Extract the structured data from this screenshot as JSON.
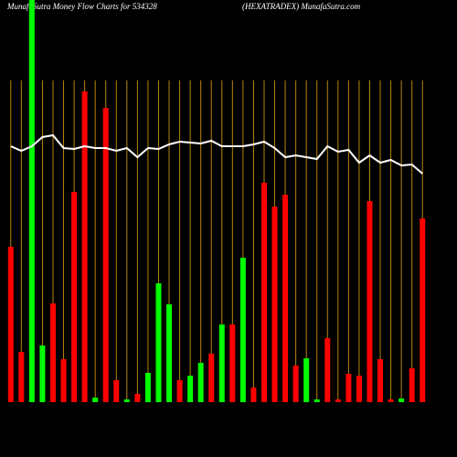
{
  "chart_data": {
    "type": "bar",
    "title": "MunafaSutra  Money Flow  Charts for 534328",
    "subtitle": "(HEXATRADEX) MunafaSutra.com",
    "ylim": [
      0,
      440
    ],
    "grid_color": "#b8860b",
    "bars": {
      "values": [
        170,
        55,
        440,
        62,
        108,
        47,
        230,
        340,
        5,
        322,
        24,
        3,
        9,
        32,
        130,
        107,
        24,
        29,
        43,
        53,
        85,
        85,
        158,
        16,
        240,
        214,
        227,
        40,
        48,
        3,
        70,
        3,
        31,
        29,
        220,
        47,
        3,
        4,
        37,
        201
      ],
      "colors": [
        "#ff0000",
        "#ff0000",
        "#00ff00",
        "#00ff00",
        "#ff0000",
        "#ff0000",
        "#ff0000",
        "#ff0000",
        "#00ff00",
        "#ff0000",
        "#ff0000",
        "#00ff00",
        "#ff0000",
        "#00ff00",
        "#00ff00",
        "#00ff00",
        "#ff0000",
        "#00ff00",
        "#00ff00",
        "#ff0000",
        "#00ff00",
        "#ff0000",
        "#00ff00",
        "#ff0000",
        "#ff0000",
        "#ff0000",
        "#ff0000",
        "#ff0000",
        "#00ff00",
        "#00ff00",
        "#ff0000",
        "#ff0000",
        "#ff0000",
        "#ff0000",
        "#ff0000",
        "#ff0000",
        "#ff0000",
        "#00ff00",
        "#ff0000",
        "#ff0000"
      ]
    },
    "line": {
      "color": "#ffffff",
      "values": [
        280,
        275,
        280,
        290,
        292,
        278,
        277,
        280,
        278,
        278,
        275,
        278,
        268,
        278,
        277,
        282,
        285,
        284,
        283,
        286,
        280,
        280,
        280,
        282,
        285,
        278,
        268,
        270,
        268,
        266,
        280,
        274,
        276,
        262,
        270,
        262,
        265,
        259,
        260,
        250
      ]
    }
  }
}
